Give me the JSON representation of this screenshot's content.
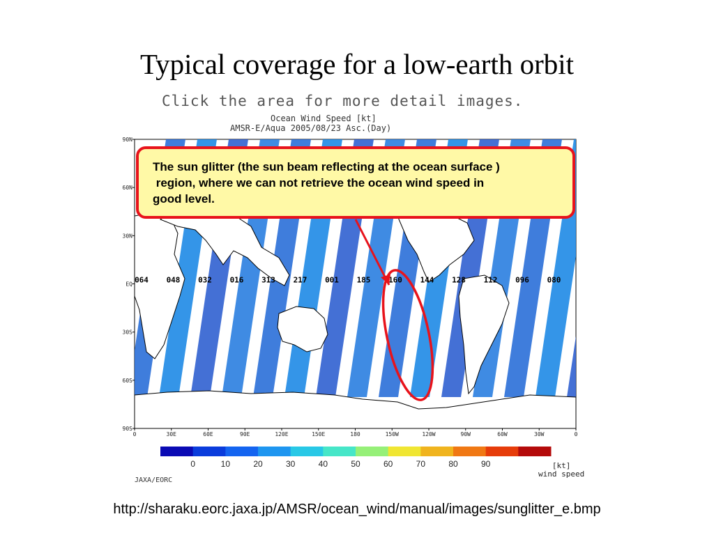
{
  "slide": {
    "title": "Typical coverage for a low-earth orbit",
    "source_url": "http://sharaku.eorc.jaxa.jp/AMSR/ocean_wind/manual/images/sunglitter_e.bmp"
  },
  "figure": {
    "click_note": "Click the area for more detail images.",
    "title_line1": "Ocean Wind Speed [kt]",
    "title_line2": "AMSR-E/Aqua 2005/08/23 Asc.(Day)",
    "credit": "JAXA/EORC",
    "lat_labels": [
      "90N",
      "60N",
      "30N",
      "EQ",
      "30S",
      "60S",
      "90S"
    ],
    "lon_labels": [
      "0",
      "30E",
      "60E",
      "90E",
      "120E",
      "150E",
      "180",
      "150W",
      "120W",
      "90W",
      "60W",
      "30W",
      "0"
    ],
    "orbit_numbers": [
      "064",
      "048",
      "032",
      "016",
      "313",
      "217",
      "001",
      "185",
      "160",
      "144",
      "128",
      "112",
      "096",
      "080"
    ],
    "colorbar": {
      "ticks": [
        "0",
        "10",
        "20",
        "30",
        "40",
        "50",
        "60",
        "70",
        "80",
        "90"
      ],
      "unit_line1": "[kt]",
      "unit_line2": "wind speed",
      "colors": [
        "#0a0ab4",
        "#0a3cdc",
        "#1464f0",
        "#1e96f0",
        "#28c8e6",
        "#46e6c8",
        "#96f078",
        "#f0e632",
        "#f0b41e",
        "#f07814",
        "#e63c0a",
        "#b40a0a"
      ]
    },
    "callout": {
      "line1": "The sun glitter (the sun beam reflecting at the ocean surface )",
      "line2": " region, where we can not retrieve the ocean wind speed in",
      "line3": "good level."
    },
    "colors": {
      "callout_border": "#e8131b",
      "callout_fill": "#fff9a6",
      "swath_blue": "#2a6fd8"
    }
  }
}
